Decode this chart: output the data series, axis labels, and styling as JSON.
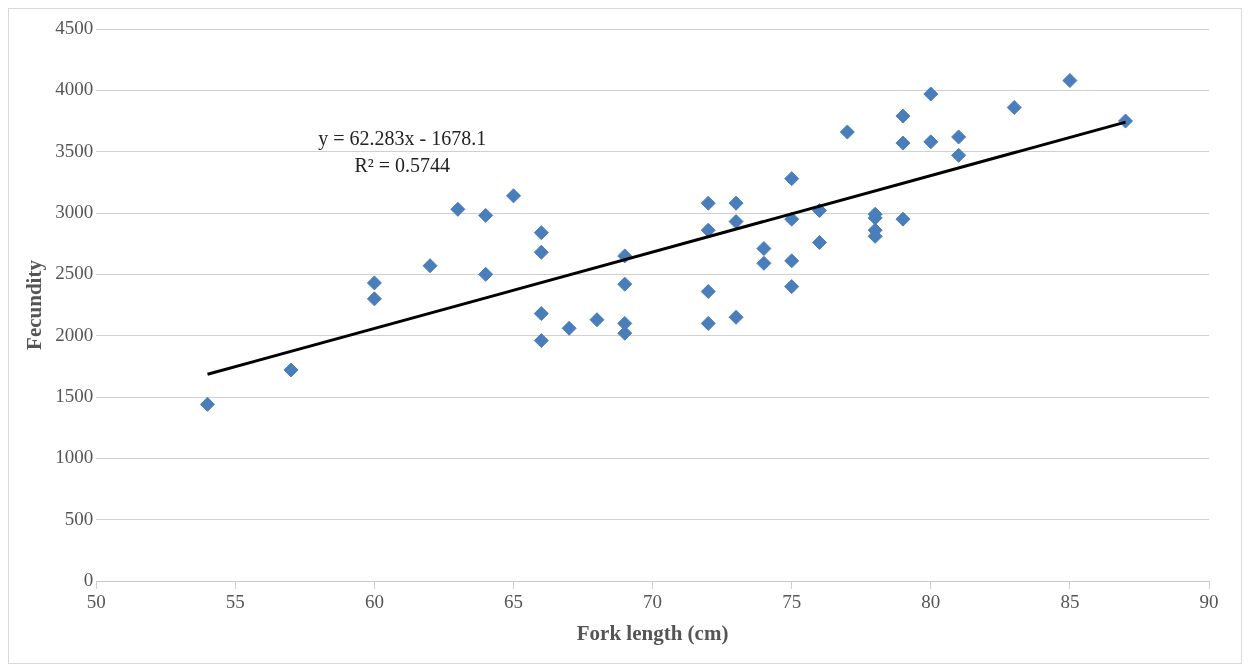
{
  "chart_data": {
    "type": "scatter",
    "xlabel": "Fork length (cm)",
    "ylabel": "Fecundity",
    "annotations": [
      "y = 62.283x - 1678.1",
      "R² = 0.5744"
    ],
    "series": [
      {
        "marker": "diamond",
        "color": "#4a7ebb",
        "x": [
          54,
          57,
          60,
          60,
          62,
          63,
          64,
          64,
          65,
          66,
          66,
          66,
          66,
          67,
          68,
          69,
          69,
          69,
          69,
          72,
          72,
          72,
          72,
          73,
          73,
          73,
          74,
          74,
          75,
          75,
          75,
          75,
          76,
          76,
          77,
          78,
          78,
          78,
          78,
          79,
          79,
          79,
          80,
          80,
          81,
          81,
          83,
          85,
          87
        ],
        "values": [
          1440,
          1720,
          2430,
          2300,
          2570,
          3030,
          2980,
          2500,
          3140,
          2840,
          2680,
          2180,
          1960,
          2060,
          2130,
          2650,
          2420,
          2100,
          2020,
          3080,
          2860,
          2360,
          2100,
          3080,
          2930,
          2150,
          2710,
          2590,
          3280,
          2950,
          2610,
          2400,
          3020,
          2760,
          3660,
          2990,
          2960,
          2860,
          2810,
          3790,
          3570,
          2950,
          3970,
          3580,
          3620,
          3470,
          3860,
          4080,
          3750
        ]
      },
      {
        "type": "line",
        "marker": "none",
        "color": "#000000",
        "x": [
          54,
          87
        ],
        "values": [
          1685,
          3741
        ]
      }
    ],
    "xlim": [
      50,
      90
    ],
    "xticks": [
      50,
      55,
      60,
      65,
      70,
      75,
      80,
      85,
      90
    ],
    "ylim": [
      0,
      4500
    ],
    "yticks": [
      0,
      500,
      1000,
      1500,
      2000,
      2500,
      3000,
      3500,
      4000,
      4500
    ],
    "grid": "y",
    "legend": false
  }
}
